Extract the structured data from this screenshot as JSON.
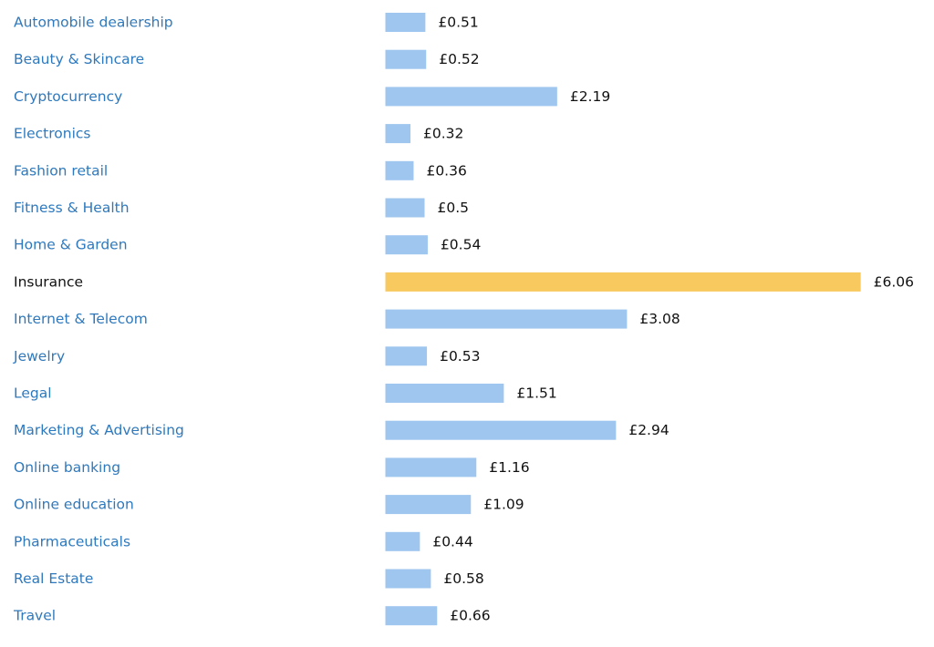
{
  "chart_data": {
    "type": "bar",
    "orientation": "horizontal",
    "currency_prefix": "£",
    "categories": [
      "Automobile dealership",
      "Beauty & Skincare",
      "Cryptocurrency",
      "Electronics",
      "Fashion retail",
      "Fitness & Health",
      "Home & Garden",
      "Insurance",
      "Internet & Telecom",
      "Jewelry",
      "Legal",
      "Marketing & Advertising",
      "Online banking",
      "Online education",
      "Pharmaceuticals",
      "Real Estate",
      "Travel"
    ],
    "values": [
      0.51,
      0.52,
      2.19,
      0.32,
      0.36,
      0.5,
      0.54,
      6.06,
      3.08,
      0.53,
      1.51,
      2.94,
      1.16,
      1.09,
      0.44,
      0.58,
      0.66
    ],
    "value_labels": [
      "£0.51",
      "£0.52",
      "£2.19",
      "£0.32",
      "£0.36",
      "£0.5",
      "£0.54",
      "£6.06",
      "£3.08",
      "£0.53",
      "£1.51",
      "£2.94",
      "£1.16",
      "£1.09",
      "£0.44",
      "£0.58",
      "£0.66"
    ],
    "highlighted_category": "Insurance",
    "title": "",
    "xlabel": "",
    "ylabel": "",
    "grid": false,
    "legend": "none"
  },
  "colors": {
    "bar": "#9fc6ee",
    "bar_highlight": "#f7c95f",
    "category_link": "#2e79bd",
    "category_highlight": "#111111",
    "value_text": "#111111"
  }
}
